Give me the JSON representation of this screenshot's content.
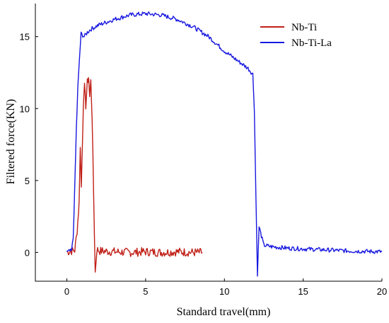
{
  "chart_data": {
    "type": "line",
    "title": "",
    "xlabel": "Standard travel(mm)",
    "ylabel": "Filtered force(KN)",
    "xlim": [
      -2,
      20
    ],
    "ylim": [
      -2,
      17.3
    ],
    "xticks": [
      0,
      5,
      10,
      15,
      20
    ],
    "yticks": [
      0,
      5,
      10,
      15
    ],
    "grid": false,
    "legend": "top-right",
    "series": [
      {
        "name": "Nb-Ti",
        "color": "#c02018",
        "noise": 0.3,
        "points": [
          [
            0,
            0.05
          ],
          [
            0.3,
            0.1
          ],
          [
            0.5,
            0.15
          ],
          [
            0.65,
            1.5
          ],
          [
            0.78,
            3.5
          ],
          [
            0.85,
            7.5
          ],
          [
            0.92,
            4.5
          ],
          [
            1.0,
            8.2
          ],
          [
            1.05,
            10.5
          ],
          [
            1.12,
            11.5
          ],
          [
            1.2,
            10.2
          ],
          [
            1.3,
            11.8
          ],
          [
            1.38,
            12.2
          ],
          [
            1.45,
            10.8
          ],
          [
            1.52,
            11.9
          ],
          [
            1.6,
            9.5
          ],
          [
            1.7,
            4.0
          ],
          [
            1.8,
            -1.4
          ],
          [
            1.9,
            0.2
          ],
          [
            2.1,
            0.1
          ],
          [
            3.0,
            0.05
          ],
          [
            4.0,
            0.0
          ],
          [
            5.0,
            0.05
          ],
          [
            6.0,
            0.0
          ],
          [
            7.0,
            0.05
          ],
          [
            8.0,
            0.0
          ],
          [
            8.6,
            0.0
          ]
        ]
      },
      {
        "name": "Nb-Ti-La",
        "color": "#1818e0",
        "noise": 0.15,
        "points": [
          [
            0,
            0.05
          ],
          [
            0.3,
            0.1
          ],
          [
            0.4,
            1.0
          ],
          [
            0.5,
            4.5
          ],
          [
            0.6,
            8.5
          ],
          [
            0.7,
            11.5
          ],
          [
            0.8,
            13.5
          ],
          [
            0.9,
            15.2
          ],
          [
            1.1,
            15.0
          ],
          [
            1.3,
            15.3
          ],
          [
            1.5,
            15.5
          ],
          [
            2.0,
            15.8
          ],
          [
            3.0,
            16.2
          ],
          [
            4.0,
            16.5
          ],
          [
            5.0,
            16.6
          ],
          [
            6.0,
            16.5
          ],
          [
            7.0,
            16.2
          ],
          [
            8.0,
            15.7
          ],
          [
            9.0,
            15.0
          ],
          [
            10.0,
            14.0
          ],
          [
            11.0,
            13.2
          ],
          [
            11.5,
            12.8
          ],
          [
            11.8,
            12.4
          ],
          [
            11.9,
            10.0
          ],
          [
            12.0,
            4.0
          ],
          [
            12.1,
            -1.5
          ],
          [
            12.2,
            1.8
          ],
          [
            12.5,
            0.5
          ],
          [
            13.0,
            0.4
          ],
          [
            14.0,
            0.3
          ],
          [
            16.0,
            0.2
          ],
          [
            18.0,
            0.1
          ],
          [
            20.0,
            0.05
          ]
        ]
      }
    ]
  }
}
